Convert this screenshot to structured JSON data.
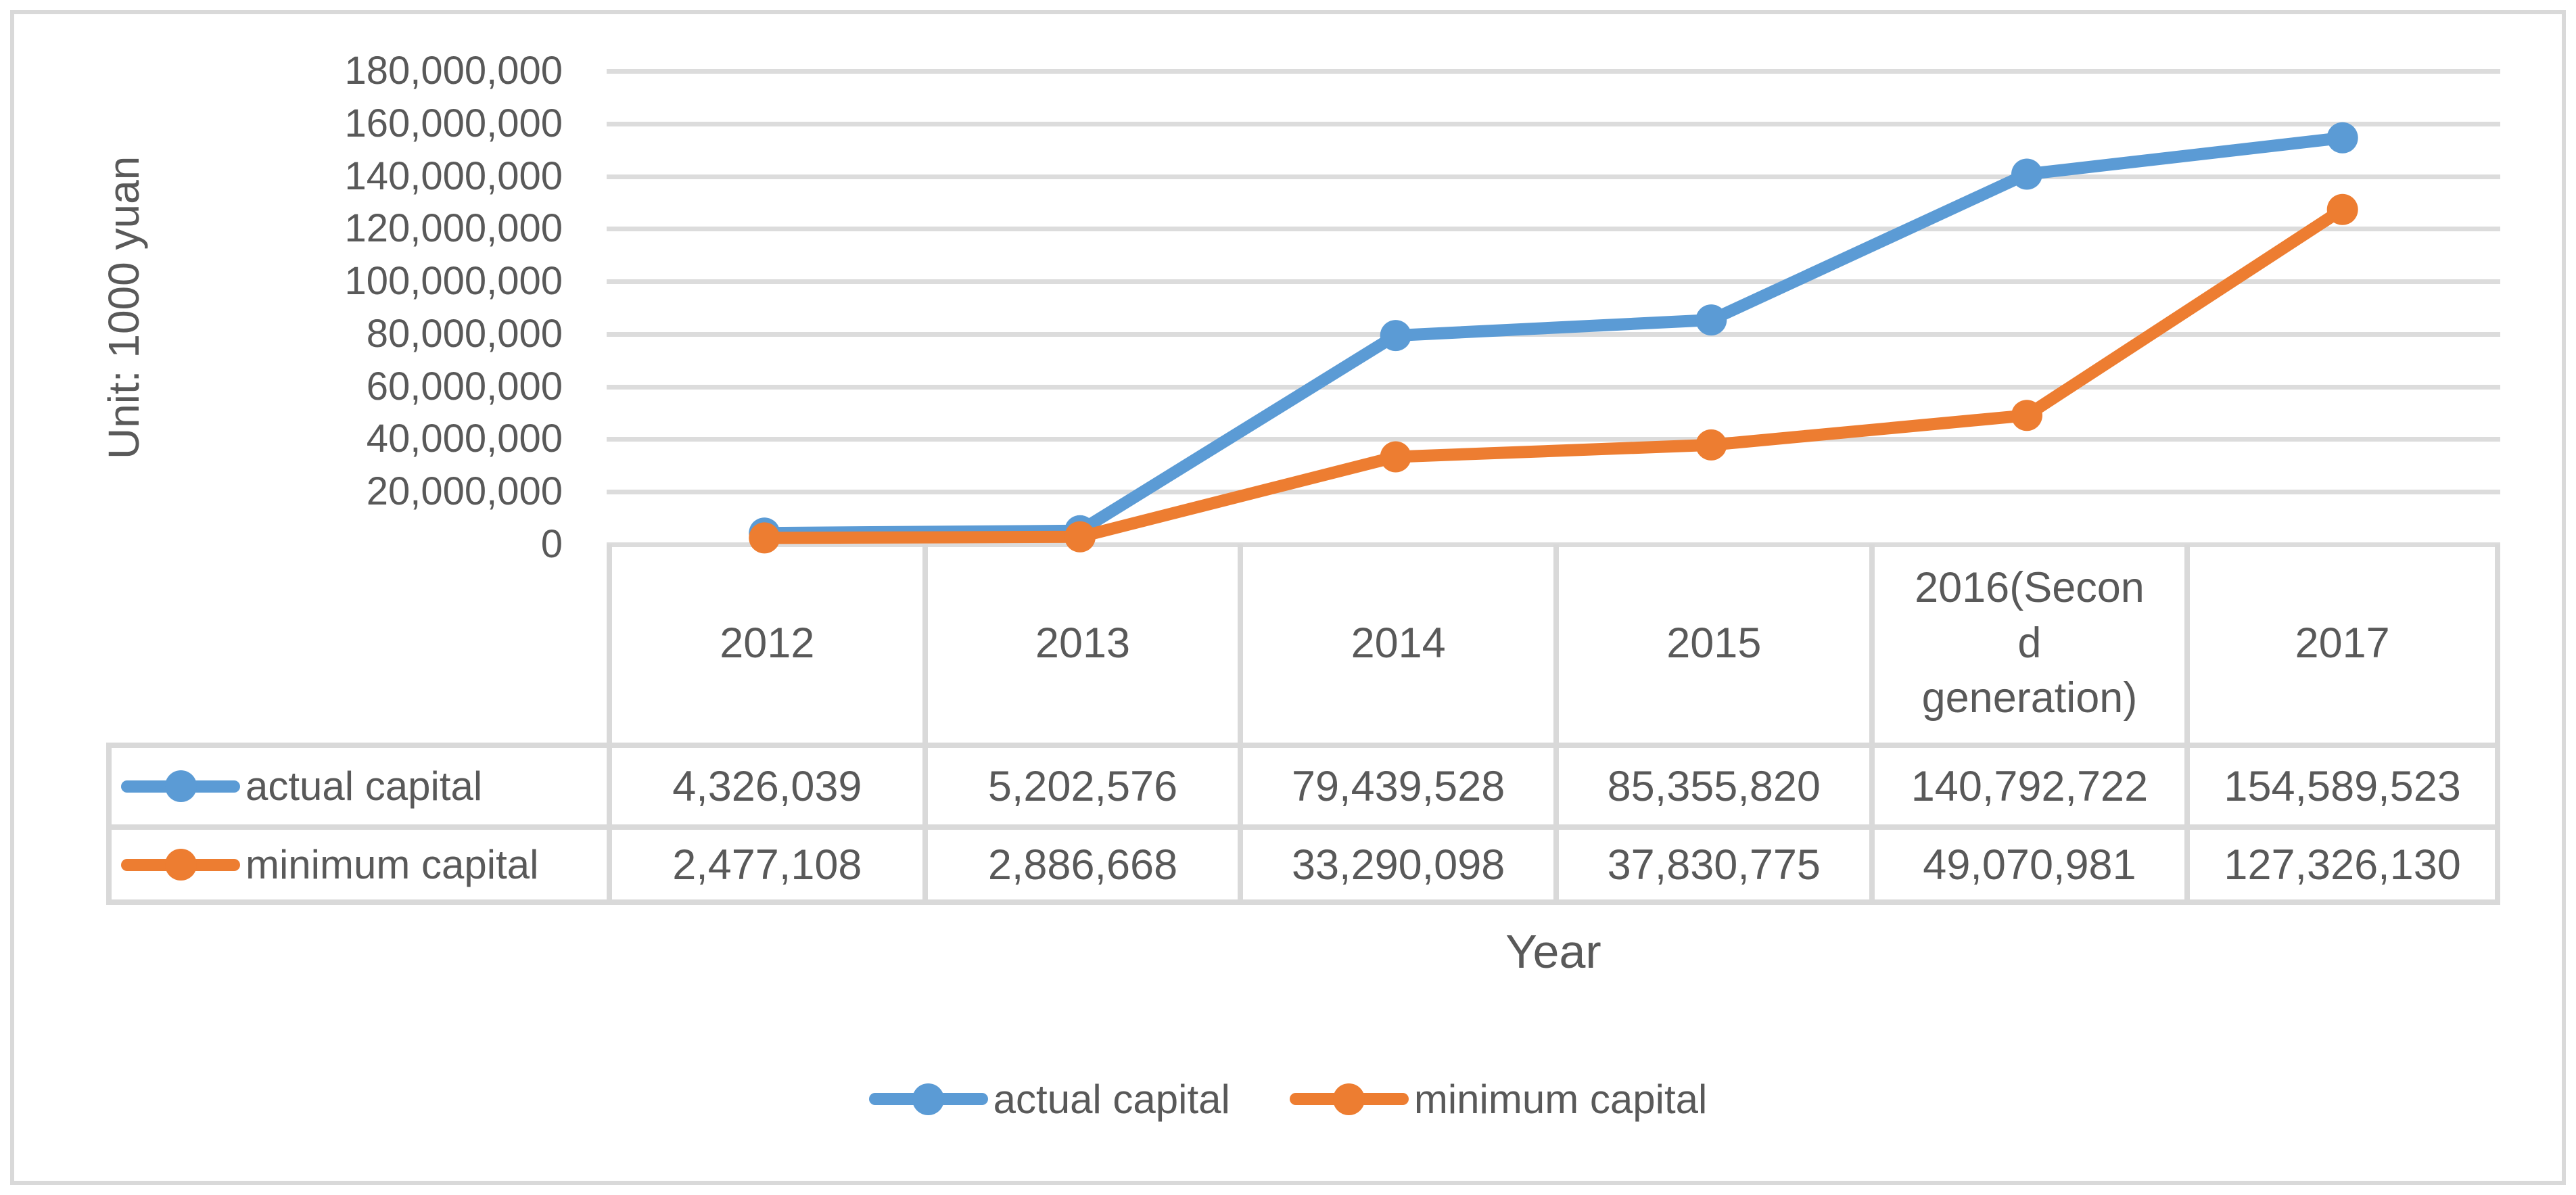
{
  "chart_data": {
    "type": "line",
    "title": "",
    "ylabel": "Unit: 1000 yuan",
    "xlabel": "Year",
    "categories": [
      "2012",
      "2013",
      "2014",
      "2015",
      "2016(Second generation)",
      "2017"
    ],
    "ytick_labels": [
      "180,000,000",
      "160,000,000",
      "140,000,000",
      "120,000,000",
      "100,000,000",
      "80,000,000",
      "60,000,000",
      "40,000,000",
      "20,000,000",
      "0"
    ],
    "ylim": [
      0,
      180000000
    ],
    "ytick_step": 20000000,
    "grid": true,
    "legend_position": "bottom",
    "marker": "circle",
    "series": [
      {
        "name": "actual capital",
        "color": "#5B9BD5",
        "values": [
          4326039,
          5202576,
          79439528,
          85355820,
          140792722,
          154589523
        ],
        "values_formatted": [
          "4,326,039",
          "5,202,576",
          "79,439,528",
          "85,355,820",
          "140,792,722",
          "154,589,523"
        ]
      },
      {
        "name": "minimum capital",
        "color": "#ED7D31",
        "values": [
          2477108,
          2886668,
          33290098,
          37830775,
          49070981,
          127326130
        ],
        "values_formatted": [
          "2,477,108",
          "2,886,668",
          "33,290,098",
          "37,830,775",
          "49,070,981",
          "127,326,130"
        ]
      }
    ]
  }
}
